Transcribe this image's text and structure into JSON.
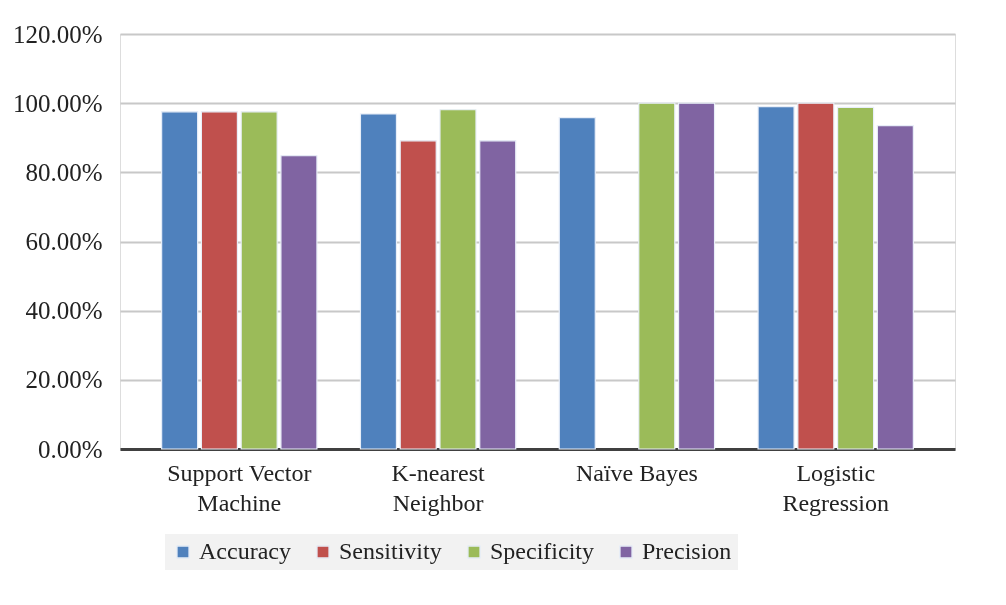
{
  "chart_data": {
    "type": "bar",
    "categories": [
      "Support Vector\nMachine",
      "K-nearest\nNeighbor",
      "Naïve Bayes",
      "Logistic\nRegression"
    ],
    "series": [
      {
        "name": "Accuracy",
        "color": "#4f81bd",
        "values": [
          97.5,
          96.9,
          95.8,
          99.0
        ]
      },
      {
        "name": "Sensitivity",
        "color": "#c0504d",
        "values": [
          97.5,
          89.1,
          null,
          100
        ]
      },
      {
        "name": "Specificity",
        "color": "#9bbb59",
        "values": [
          97.5,
          98.1,
          100,
          98.8
        ]
      },
      {
        "name": "Precision",
        "color": "#8064a2",
        "values": [
          84.8,
          89.1,
          100,
          93.5
        ]
      }
    ],
    "ylim": [
      0,
      120
    ],
    "yticks": [
      {
        "value": 0,
        "label": "0.00%"
      },
      {
        "value": 20,
        "label": "20.00%"
      },
      {
        "value": 40,
        "label": "40.00%"
      },
      {
        "value": 60,
        "label": "60.00%"
      },
      {
        "value": 80,
        "label": "80.00%"
      },
      {
        "value": 100,
        "label": "100.00%"
      },
      {
        "value": 120,
        "label": "120.00%"
      }
    ],
    "grid": "y",
    "legend": "bottom"
  }
}
